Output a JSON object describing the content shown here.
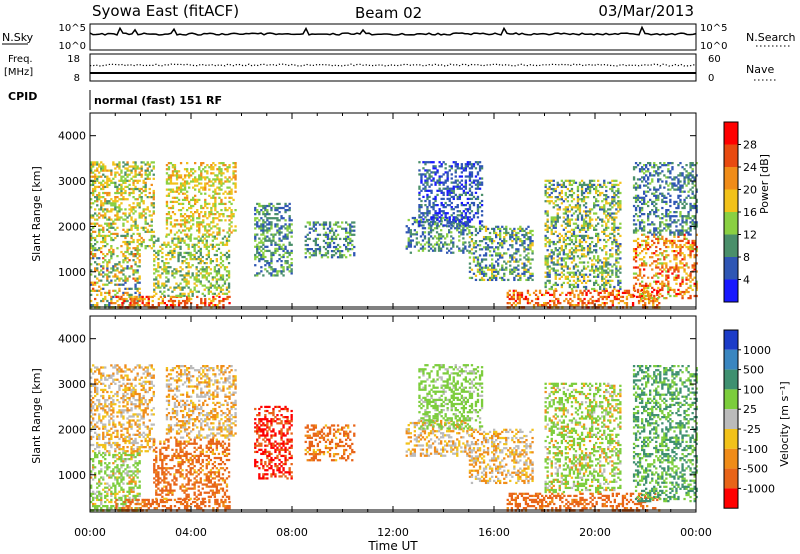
{
  "header": {
    "title": "Syowa East (fitACF)",
    "beam": "Beam 02",
    "date": "03/Mar/2013"
  },
  "status_panel": {
    "nsky_label": "N.Sky",
    "nsky_ticks": [
      "10^5",
      "10^0"
    ],
    "nsearch_ticks": [
      "10^5",
      "10^0"
    ],
    "nsearch_label": "N.Search",
    "freq_label": "Freq.",
    "freq_unit": "[MHz]",
    "freq_ticks": [
      "18",
      "8"
    ],
    "nave_ticks": [
      "60",
      "0"
    ],
    "nave_label": "Nave",
    "cpid_label": "CPID",
    "cpid_text": "normal (fast) 151 RF"
  },
  "x_axis": {
    "label": "Time UT",
    "ticks": [
      "00:00",
      "04:00",
      "08:00",
      "12:00",
      "16:00",
      "20:00",
      "00:00"
    ]
  },
  "y_axis": {
    "label": "Slant Range [km]",
    "ticks": [
      "1000",
      "2000",
      "3000",
      "4000"
    ]
  },
  "power_scale": {
    "label": "Power [dB]",
    "ticks": [
      "4",
      "8",
      "12",
      "16",
      "20",
      "24",
      "28"
    ],
    "colors": [
      "#1818ff",
      "#2f56b4",
      "#4a8f6a",
      "#8ad042",
      "#f2c21a",
      "#f08c18",
      "#e84a10",
      "#ff0000"
    ]
  },
  "velocity_scale": {
    "label": "Velocity [m s⁻¹]",
    "ticks": [
      "1000",
      "500",
      "100",
      "25",
      "-25",
      "-100",
      "-500",
      "-1000"
    ],
    "colors": [
      "#1c3cc8",
      "#3a86c0",
      "#3f9070",
      "#7ccd3c",
      "#bbbbbb",
      "#f2c21a",
      "#f08c18",
      "#e86418",
      "#ff0000"
    ]
  },
  "chart_data": [
    {
      "type": "heatmap",
      "name": "Power [dB]",
      "x_range_hours": [
        0,
        24
      ],
      "y_range_km": [
        180,
        4500
      ],
      "regions": [
        {
          "t": [
            0.0,
            2.0
          ],
          "r": [
            200,
            1500
          ],
          "min": 6,
          "max": 26
        },
        {
          "t": [
            0.0,
            2.5
          ],
          "r": [
            1500,
            3400
          ],
          "min": 10,
          "max": 22
        },
        {
          "t": [
            1.0,
            5.5
          ],
          "r": [
            200,
            450
          ],
          "min": 18,
          "max": 30
        },
        {
          "t": [
            2.5,
            5.5
          ],
          "r": [
            450,
            1800
          ],
          "min": 8,
          "max": 20
        },
        {
          "t": [
            3.0,
            5.8
          ],
          "r": [
            1800,
            3400
          ],
          "min": 12,
          "max": 22
        },
        {
          "t": [
            6.5,
            8.0
          ],
          "r": [
            900,
            2500
          ],
          "min": 4,
          "max": 16
        },
        {
          "t": [
            8.5,
            10.5
          ],
          "r": [
            1300,
            2100
          ],
          "min": 4,
          "max": 14
        },
        {
          "t": [
            12.5,
            15.0
          ],
          "r": [
            1400,
            2200
          ],
          "min": 4,
          "max": 14
        },
        {
          "t": [
            13.0,
            15.5
          ],
          "r": [
            2000,
            3400
          ],
          "min": 2,
          "max": 10
        },
        {
          "t": [
            15.0,
            17.5
          ],
          "r": [
            800,
            2000
          ],
          "min": 4,
          "max": 18
        },
        {
          "t": [
            16.5,
            22.5
          ],
          "r": [
            200,
            600
          ],
          "min": 18,
          "max": 30
        },
        {
          "t": [
            18.0,
            21.0
          ],
          "r": [
            600,
            3000
          ],
          "min": 6,
          "max": 20
        },
        {
          "t": [
            21.5,
            24.0
          ],
          "r": [
            400,
            1800
          ],
          "min": 14,
          "max": 30
        },
        {
          "t": [
            21.5,
            24.0
          ],
          "r": [
            1800,
            3400
          ],
          "min": 4,
          "max": 14
        }
      ]
    },
    {
      "type": "heatmap",
      "name": "Velocity [m s-1]",
      "x_range_hours": [
        0,
        24
      ],
      "y_range_km": [
        180,
        4500
      ],
      "regions": [
        {
          "t": [
            0.0,
            2.0
          ],
          "r": [
            200,
            1500
          ],
          "min": -100,
          "max": 500
        },
        {
          "t": [
            0.0,
            2.5
          ],
          "r": [
            1500,
            3400
          ],
          "min": -100,
          "max": 100
        },
        {
          "t": [
            1.0,
            5.5
          ],
          "r": [
            200,
            450
          ],
          "min": -500,
          "max": -25
        },
        {
          "t": [
            2.5,
            5.5
          ],
          "r": [
            450,
            1800
          ],
          "min": -500,
          "max": 25
        },
        {
          "t": [
            3.0,
            5.8
          ],
          "r": [
            1800,
            3400
          ],
          "min": -100,
          "max": 100
        },
        {
          "t": [
            6.5,
            8.0
          ],
          "r": [
            900,
            2500
          ],
          "min": -1000,
          "max": -100
        },
        {
          "t": [
            8.5,
            10.5
          ],
          "r": [
            1300,
            2100
          ],
          "min": -500,
          "max": 25
        },
        {
          "t": [
            12.5,
            15.0
          ],
          "r": [
            1400,
            2200
          ],
          "min": -100,
          "max": 100
        },
        {
          "t": [
            13.0,
            15.5
          ],
          "r": [
            2000,
            3400
          ],
          "min": 25,
          "max": 500
        },
        {
          "t": [
            15.0,
            17.5
          ],
          "r": [
            800,
            2000
          ],
          "min": -100,
          "max": 100
        },
        {
          "t": [
            16.5,
            22.5
          ],
          "r": [
            200,
            600
          ],
          "min": -500,
          "max": -25
        },
        {
          "t": [
            18.0,
            21.0
          ],
          "r": [
            600,
            3000
          ],
          "min": -100,
          "max": 500
        },
        {
          "t": [
            21.5,
            24.0
          ],
          "r": [
            400,
            1800
          ],
          "min": 100,
          "max": 1000
        },
        {
          "t": [
            21.5,
            24.0
          ],
          "r": [
            1800,
            3400
          ],
          "min": 100,
          "max": 1000
        }
      ]
    }
  ]
}
